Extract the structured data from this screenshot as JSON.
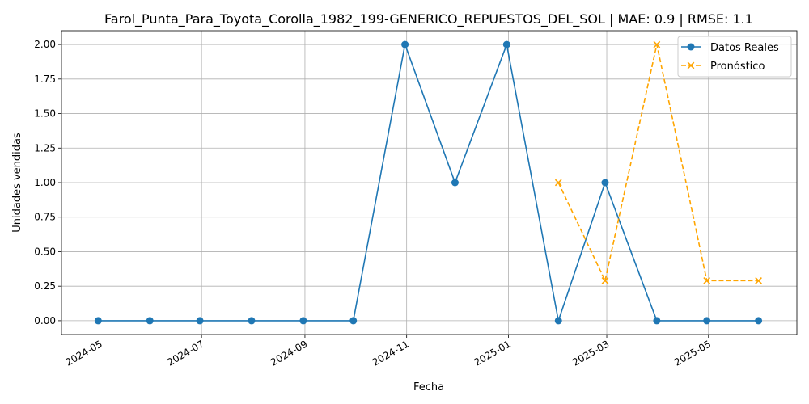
{
  "chart_data": {
    "type": "line",
    "title": "Farol_Punta_Para_Toyota_Corolla_1982_199-GENERICO_REPUESTOS_DEL_SOL | MAE: 0.9 | RMSE: 1.1",
    "xlabel": "Fecha",
    "ylabel": "Unidades vendidas",
    "x_type": "date",
    "xlim": [
      "2024-04-08",
      "2025-06-23"
    ],
    "ylim": [
      -0.1,
      2.1
    ],
    "x_ticks": [
      "2024-05",
      "2024-07",
      "2024-09",
      "2024-11",
      "2025-01",
      "2025-03",
      "2025-05"
    ],
    "y_ticks": [
      "0.00",
      "0.25",
      "0.50",
      "0.75",
      "1.00",
      "1.25",
      "1.50",
      "1.75",
      "2.00"
    ],
    "grid": true,
    "legend": "top-right",
    "series": [
      {
        "name": "Datos Reales",
        "color": "#1f77b4",
        "linestyle": "solid",
        "marker": "circle",
        "x": [
          "2024-04-30",
          "2024-05-31",
          "2024-06-30",
          "2024-07-31",
          "2024-08-31",
          "2024-09-30",
          "2024-10-31",
          "2024-11-30",
          "2024-12-31",
          "2025-01-31",
          "2025-02-28",
          "2025-03-31",
          "2025-04-30",
          "2025-05-31"
        ],
        "values": [
          0,
          0,
          0,
          0,
          0,
          0,
          2,
          1,
          2,
          0,
          1,
          0,
          0,
          0
        ]
      },
      {
        "name": "Pronóstico",
        "color": "#ffa500",
        "linestyle": "dashed",
        "marker": "x",
        "x": [
          "2025-01-31",
          "2025-02-28",
          "2025-03-31",
          "2025-04-30",
          "2025-05-31"
        ],
        "values": [
          1,
          0.29,
          2,
          0.29,
          0.29
        ]
      }
    ]
  }
}
